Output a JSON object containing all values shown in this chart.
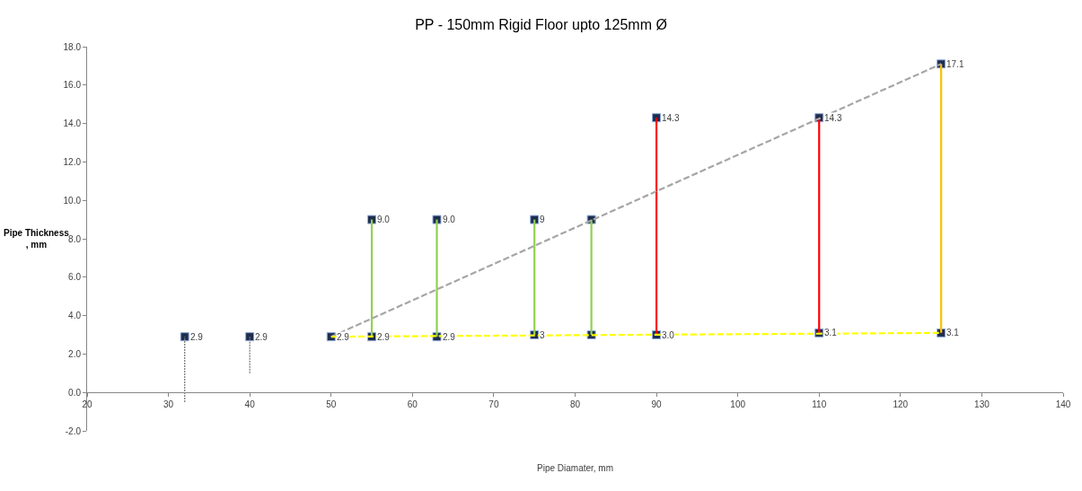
{
  "chart_data": {
    "type": "scatter",
    "title": "PP - 150mm Rigid Floor upto 125mm Ø",
    "xlabel": "Pipe Diamater, mm",
    "ylabel": "Pipe Thickness\n, mm",
    "xlim": [
      20,
      140
    ],
    "xticks": [
      20,
      30,
      40,
      50,
      60,
      70,
      80,
      90,
      100,
      110,
      120,
      130,
      140
    ],
    "ylim": [
      -2,
      18
    ],
    "yticks": [
      {
        "value": -2,
        "label": "-2.0"
      },
      {
        "value": 0,
        "label": "0.0"
      },
      {
        "value": 2,
        "label": "2.0"
      },
      {
        "value": 4,
        "label": "4.0"
      },
      {
        "value": 6,
        "label": "6.0"
      },
      {
        "value": 8,
        "label": "8.0"
      },
      {
        "value": 10,
        "label": "10.0"
      },
      {
        "value": 12,
        "label": "12.0"
      },
      {
        "value": 14,
        "label": "14.0"
      },
      {
        "value": 16,
        "label": "16.0"
      },
      {
        "value": 18,
        "label": "18.0"
      }
    ],
    "marker": "square",
    "series": [
      {
        "type": "line",
        "color": "#7f7f7f",
        "marker": "none",
        "line_style": "dotted",
        "x": [
          32,
          32
        ],
        "values": [
          -0.5,
          2.9
        ]
      },
      {
        "type": "line",
        "color": "#7f7f7f",
        "marker": "none",
        "line_style": "dotted",
        "x": [
          40,
          40
        ],
        "values": [
          1.0,
          2.9
        ]
      },
      {
        "type": "line",
        "color": "#92d050",
        "marker": "none",
        "line_style": "solid",
        "x": [
          55,
          55
        ],
        "values": [
          2.9,
          9.0
        ]
      },
      {
        "type": "line",
        "color": "#92d050",
        "marker": "none",
        "line_style": "solid",
        "x": [
          63,
          63
        ],
        "values": [
          2.9,
          9.0
        ]
      },
      {
        "type": "line",
        "color": "#92d050",
        "marker": "none",
        "line_style": "solid",
        "x": [
          75,
          75
        ],
        "values": [
          3.0,
          9.0
        ]
      },
      {
        "type": "line",
        "color": "#92d050",
        "marker": "none",
        "line_style": "solid",
        "x": [
          82,
          82
        ],
        "values": [
          3.0,
          9.0
        ]
      },
      {
        "type": "line",
        "color": "#ff0000",
        "marker": "none",
        "line_style": "solid",
        "x": [
          90,
          90
        ],
        "values": [
          3.0,
          14.3
        ]
      },
      {
        "type": "line",
        "color": "#ff0000",
        "marker": "none",
        "line_style": "solid",
        "x": [
          110,
          110
        ],
        "values": [
          3.1,
          14.3
        ]
      },
      {
        "type": "line",
        "color": "#ffc000",
        "marker": "none",
        "line_style": "solid",
        "x": [
          125,
          125
        ],
        "values": [
          3.1,
          17.1
        ]
      },
      {
        "type": "line",
        "color": "#a6a6a6",
        "marker": "none",
        "line_style": "dashed",
        "x": [
          50,
          125
        ],
        "values": [
          2.9,
          17.1
        ]
      },
      {
        "type": "line",
        "color": "#ffff00",
        "marker": "none",
        "line_style": "dashed",
        "x": [
          50,
          125
        ],
        "values": [
          2.9,
          3.1
        ]
      },
      {
        "type": "scatter",
        "color": "#1f2d4e",
        "x": [
          32,
          40,
          50,
          55,
          63,
          75,
          82,
          90,
          110,
          125
        ],
        "values": [
          2.9,
          2.9,
          2.9,
          9.0,
          9.0,
          9.0,
          9.0,
          14.3,
          14.3,
          17.1
        ],
        "value_labels": [
          "2.9",
          "2.9",
          "2.9",
          "9.0",
          "9.0",
          "9",
          null,
          "14.3",
          "14.3",
          "17.1"
        ]
      },
      {
        "type": "scatter",
        "color": "#1f2d4e",
        "x": [
          55,
          63,
          75,
          82,
          90,
          110,
          125
        ],
        "values": [
          2.9,
          2.9,
          3.0,
          3.0,
          3.0,
          3.1,
          3.1
        ],
        "value_labels": [
          "2.9",
          "2.9",
          "3",
          null,
          "3.0",
          "3.1",
          "3.1"
        ]
      }
    ]
  }
}
